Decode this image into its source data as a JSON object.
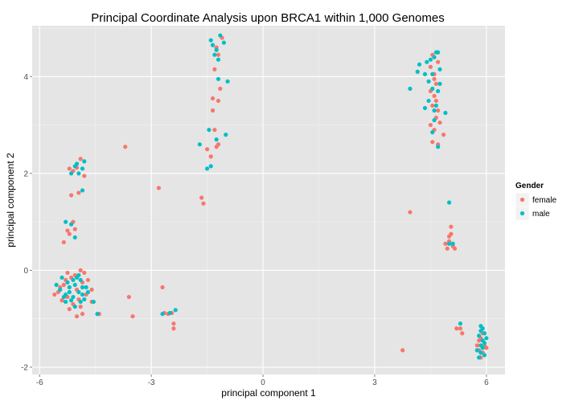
{
  "chart_data": {
    "type": "scatter",
    "title": "Principal Coordinate Analysis upon BRCA1 within 1,000 Genomes",
    "xlabel": "principal component 1",
    "ylabel": "principal component 2",
    "xlim": [
      -6.2,
      6.5
    ],
    "ylim": [
      -2.15,
      5.05
    ],
    "x_ticks": [
      -6,
      -3,
      0,
      3,
      6
    ],
    "y_ticks": [
      -2,
      0,
      2,
      4
    ],
    "x_tick_labels": [
      "-6",
      "-3",
      "0",
      "3",
      "6"
    ],
    "y_tick_labels": [
      "-2",
      "0",
      "2",
      "4"
    ],
    "grid": true,
    "legend": {
      "title": "Gender",
      "position": "right"
    },
    "series": [
      {
        "name": "female",
        "color": "#F8766D",
        "points": [
          [
            -5.5,
            -0.45
          ],
          [
            -5.35,
            -0.3
          ],
          [
            -5.25,
            -0.55
          ],
          [
            -5.1,
            -0.7
          ],
          [
            -5.3,
            -0.2
          ],
          [
            -5.0,
            -0.4
          ],
          [
            -4.95,
            -0.6
          ],
          [
            -5.15,
            -0.15
          ],
          [
            -5.4,
            -0.62
          ],
          [
            -4.85,
            -0.25
          ],
          [
            -4.8,
            -0.05
          ],
          [
            -4.9,
            -0.75
          ],
          [
            -5.05,
            -0.1
          ],
          [
            -5.2,
            -0.8
          ],
          [
            -4.75,
            -0.5
          ],
          [
            -5.45,
            -0.35
          ],
          [
            -4.85,
            -0.9
          ],
          [
            -5.6,
            -0.5
          ],
          [
            -5.25,
            -0.05
          ],
          [
            -5.0,
            -0.95
          ],
          [
            -4.6,
            -0.4
          ],
          [
            -4.7,
            -0.2
          ],
          [
            -4.9,
            0.0
          ],
          [
            -5.35,
            0.58
          ],
          [
            -5.05,
            0.85
          ],
          [
            -5.2,
            0.75
          ],
          [
            -5.1,
            1.0
          ],
          [
            -5.15,
            1.55
          ],
          [
            -5.25,
            0.82
          ],
          [
            -5.1,
            2.05
          ],
          [
            -4.9,
            2.3
          ],
          [
            -5.0,
            2.12
          ],
          [
            -4.95,
            1.6
          ],
          [
            -4.8,
            1.95
          ],
          [
            -5.2,
            2.1
          ],
          [
            -4.4,
            -0.9
          ],
          [
            -4.6,
            -0.65
          ],
          [
            -3.7,
            2.55
          ],
          [
            -3.6,
            -0.55
          ],
          [
            -3.5,
            -0.95
          ],
          [
            -2.8,
            1.7
          ],
          [
            -2.7,
            -0.35
          ],
          [
            -2.55,
            -0.9
          ],
          [
            -2.4,
            -1.1
          ],
          [
            -2.4,
            -1.2
          ],
          [
            -2.45,
            -0.88
          ],
          [
            -2.65,
            -0.88
          ],
          [
            -1.65,
            1.5
          ],
          [
            -1.6,
            1.38
          ],
          [
            -1.2,
            2.6
          ],
          [
            -1.25,
            2.55
          ],
          [
            -1.4,
            2.35
          ],
          [
            -1.5,
            2.5
          ],
          [
            -1.3,
            2.9
          ],
          [
            -1.35,
            3.3
          ],
          [
            -1.35,
            3.55
          ],
          [
            -1.2,
            3.5
          ],
          [
            -1.3,
            4.15
          ],
          [
            -1.2,
            4.45
          ],
          [
            -1.1,
            4.8
          ],
          [
            -1.25,
            4.6
          ],
          [
            -1.15,
            3.75
          ],
          [
            3.75,
            -1.65
          ],
          [
            3.95,
            1.2
          ],
          [
            4.5,
            3.0
          ],
          [
            4.55,
            2.65
          ],
          [
            4.6,
            2.9
          ],
          [
            4.65,
            3.15
          ],
          [
            4.7,
            2.6
          ],
          [
            4.55,
            3.4
          ],
          [
            4.6,
            3.6
          ],
          [
            4.65,
            3.85
          ],
          [
            4.5,
            4.2
          ],
          [
            4.6,
            4.05
          ],
          [
            4.7,
            3.3
          ],
          [
            4.55,
            4.45
          ],
          [
            4.6,
            3.95
          ],
          [
            4.7,
            4.3
          ],
          [
            4.5,
            3.7
          ],
          [
            4.75,
            3.05
          ],
          [
            4.85,
            2.8
          ],
          [
            4.65,
            3.5
          ],
          [
            4.9,
            0.55
          ],
          [
            5.0,
            0.6
          ],
          [
            5.05,
            0.75
          ],
          [
            5.1,
            0.5
          ],
          [
            5.15,
            0.45
          ],
          [
            5.05,
            0.9
          ],
          [
            5.0,
            0.7
          ],
          [
            4.95,
            0.45
          ],
          [
            5.2,
            -1.2
          ],
          [
            5.3,
            -1.2
          ],
          [
            5.35,
            -1.3
          ],
          [
            5.75,
            -1.55
          ],
          [
            5.8,
            -1.65
          ],
          [
            5.9,
            -1.7
          ],
          [
            5.85,
            -1.4
          ],
          [
            5.95,
            -1.55
          ],
          [
            5.9,
            -1.3
          ],
          [
            5.85,
            -1.8
          ],
          [
            5.8,
            -1.45
          ],
          [
            6.0,
            -1.6
          ]
        ]
      },
      {
        "name": "male",
        "color": "#00BFC4",
        "points": [
          [
            -5.45,
            -0.4
          ],
          [
            -5.3,
            -0.5
          ],
          [
            -5.2,
            -0.35
          ],
          [
            -5.1,
            -0.55
          ],
          [
            -5.05,
            -0.3
          ],
          [
            -4.95,
            -0.45
          ],
          [
            -4.85,
            -0.35
          ],
          [
            -5.15,
            -0.62
          ],
          [
            -5.35,
            -0.55
          ],
          [
            -4.9,
            -0.2
          ],
          [
            -5.0,
            -0.15
          ],
          [
            -4.8,
            -0.6
          ],
          [
            -5.25,
            -0.25
          ],
          [
            -4.75,
            -0.35
          ],
          [
            -5.55,
            -0.3
          ],
          [
            -5.4,
            -0.15
          ],
          [
            -5.05,
            -0.75
          ],
          [
            -4.9,
            -0.65
          ],
          [
            -4.95,
            -0.1
          ],
          [
            -5.2,
            -0.45
          ],
          [
            -5.1,
            -0.2
          ],
          [
            -4.7,
            -0.45
          ],
          [
            -5.3,
            -0.65
          ],
          [
            -4.85,
            -0.5
          ],
          [
            -4.55,
            -0.65
          ],
          [
            -4.45,
            -0.9
          ],
          [
            -5.3,
            1.0
          ],
          [
            -5.15,
            0.95
          ],
          [
            -5.05,
            0.68
          ],
          [
            -5.0,
            2.2
          ],
          [
            -5.05,
            2.15
          ],
          [
            -4.95,
            2.0
          ],
          [
            -4.85,
            2.1
          ],
          [
            -4.8,
            2.25
          ],
          [
            -4.85,
            1.65
          ],
          [
            -5.15,
            2.0
          ],
          [
            -2.7,
            -0.9
          ],
          [
            -2.5,
            -0.88
          ],
          [
            -2.35,
            -0.82
          ],
          [
            -1.7,
            2.6
          ],
          [
            -1.5,
            2.1
          ],
          [
            -1.45,
            2.9
          ],
          [
            -1.4,
            2.15
          ],
          [
            -1.4,
            4.75
          ],
          [
            -1.35,
            4.65
          ],
          [
            -1.3,
            4.45
          ],
          [
            -1.2,
            4.35
          ],
          [
            -1.25,
            4.55
          ],
          [
            -1.15,
            4.85
          ],
          [
            -1.05,
            4.7
          ],
          [
            -1.2,
            3.95
          ],
          [
            -1.0,
            2.8
          ],
          [
            -0.95,
            3.9
          ],
          [
            -1.25,
            2.7
          ],
          [
            3.95,
            3.75
          ],
          [
            4.15,
            4.1
          ],
          [
            4.2,
            4.25
          ],
          [
            4.35,
            4.05
          ],
          [
            4.35,
            3.35
          ],
          [
            4.4,
            4.3
          ],
          [
            4.45,
            3.9
          ],
          [
            4.5,
            4.35
          ],
          [
            4.55,
            4.05
          ],
          [
            4.6,
            4.4
          ],
          [
            4.65,
            4.5
          ],
          [
            4.7,
            4.5
          ],
          [
            4.55,
            3.75
          ],
          [
            4.65,
            3.4
          ],
          [
            4.7,
            3.7
          ],
          [
            4.75,
            3.85
          ],
          [
            4.55,
            2.85
          ],
          [
            4.6,
            3.1
          ],
          [
            4.7,
            2.55
          ],
          [
            4.75,
            4.15
          ],
          [
            4.9,
            3.25
          ],
          [
            4.45,
            3.5
          ],
          [
            4.6,
            3.3
          ],
          [
            5.0,
            1.4
          ],
          [
            5.0,
            0.55
          ],
          [
            5.1,
            0.55
          ],
          [
            5.3,
            -1.1
          ],
          [
            5.8,
            -1.8
          ],
          [
            5.85,
            -1.55
          ],
          [
            5.9,
            -1.45
          ],
          [
            5.85,
            -1.25
          ],
          [
            5.95,
            -1.3
          ],
          [
            5.9,
            -1.6
          ],
          [
            5.85,
            -1.7
          ],
          [
            5.75,
            -1.65
          ],
          [
            6.0,
            -1.4
          ],
          [
            5.95,
            -1.75
          ],
          [
            5.8,
            -1.35
          ],
          [
            5.85,
            -1.15
          ],
          [
            5.95,
            -1.5
          ],
          [
            5.9,
            -1.2
          ]
        ]
      }
    ]
  }
}
